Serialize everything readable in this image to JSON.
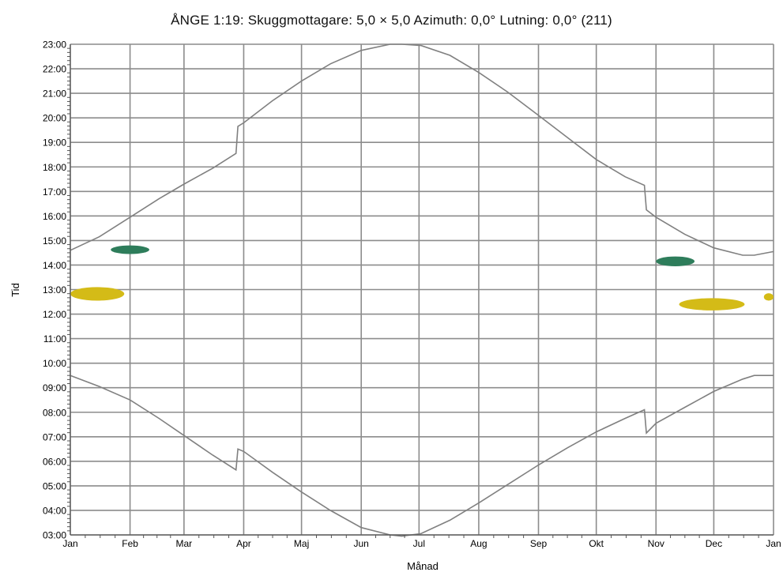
{
  "chart_data": {
    "type": "line",
    "title": "ÅNGE 1:19: Skuggmottagare: 5,0 × 5,0  Azimuth: 0,0°  Lutning: 0,0° (211)",
    "xlabel": "Månad",
    "ylabel": "Tid",
    "x_tick_labels": [
      "Jan",
      "Feb",
      "Mar",
      "Apr",
      "Maj",
      "Jun",
      "Jul",
      "Aug",
      "Sep",
      "Okt",
      "Nov",
      "Dec",
      "Jan"
    ],
    "y_tick_labels": [
      "03:00",
      "04:00",
      "05:00",
      "06:00",
      "07:00",
      "08:00",
      "09:00",
      "10:00",
      "11:00",
      "12:00",
      "13:00",
      "14:00",
      "15:00",
      "16:00",
      "17:00",
      "18:00",
      "19:00",
      "20:00",
      "21:00",
      "22:00",
      "23:00"
    ],
    "xlim_day_of_year": [
      0,
      365
    ],
    "ylim_hours": [
      3,
      23
    ],
    "grid": true,
    "legend": "none",
    "colors": {
      "line": "#808080",
      "grid": "#8c8c8c",
      "shadow_green": "#2e7d5b",
      "shadow_yellow": "#d4bb17"
    },
    "series": [
      {
        "kind": "sunset",
        "x": [
          0,
          15,
          31,
          46,
          59,
          74,
          86,
          87,
          90,
          105,
          120,
          135,
          151,
          166,
          172,
          182,
          197,
          212,
          227,
          243,
          258,
          273,
          288,
          298,
          299,
          304,
          319,
          334,
          349,
          355,
          365
        ],
        "y": [
          14.6,
          15.15,
          15.95,
          16.7,
          17.3,
          17.95,
          18.55,
          19.65,
          19.8,
          20.7,
          21.5,
          22.2,
          22.75,
          23.0,
          23.0,
          22.95,
          22.55,
          21.85,
          21.05,
          20.1,
          19.2,
          18.3,
          17.6,
          17.25,
          16.25,
          15.95,
          15.25,
          14.7,
          14.4,
          14.4,
          14.55
        ]
      },
      {
        "kind": "sunrise",
        "x": [
          0,
          15,
          31,
          46,
          59,
          74,
          86,
          87,
          90,
          105,
          120,
          135,
          151,
          166,
          172,
          182,
          197,
          212,
          227,
          243,
          258,
          273,
          288,
          298,
          299,
          304,
          319,
          334,
          349,
          355,
          365
        ],
        "y": [
          9.5,
          9.05,
          8.5,
          7.75,
          7.05,
          6.25,
          5.65,
          6.5,
          6.4,
          5.55,
          4.75,
          4.0,
          3.3,
          3.0,
          2.95,
          3.05,
          3.6,
          4.3,
          5.05,
          5.85,
          6.55,
          7.2,
          7.75,
          8.1,
          7.15,
          7.55,
          8.2,
          8.85,
          9.35,
          9.5,
          9.5
        ]
      }
    ],
    "shadow_periods": [
      {
        "color": "green",
        "day_start": 21,
        "day_end": 41,
        "time_start": 14.45,
        "time_end": 14.8
      },
      {
        "color": "yellow",
        "day_start": 0,
        "day_end": 28,
        "time_start": 12.55,
        "time_end": 13.1
      },
      {
        "color": "green",
        "day_start": 304,
        "day_end": 324,
        "time_start": 13.95,
        "time_end": 14.35
      },
      {
        "color": "yellow",
        "day_start": 316,
        "day_end": 350,
        "time_start": 12.15,
        "time_end": 12.65
      },
      {
        "color": "yellow",
        "day_start": 360,
        "day_end": 365,
        "time_start": 12.55,
        "time_end": 12.85
      }
    ]
  }
}
